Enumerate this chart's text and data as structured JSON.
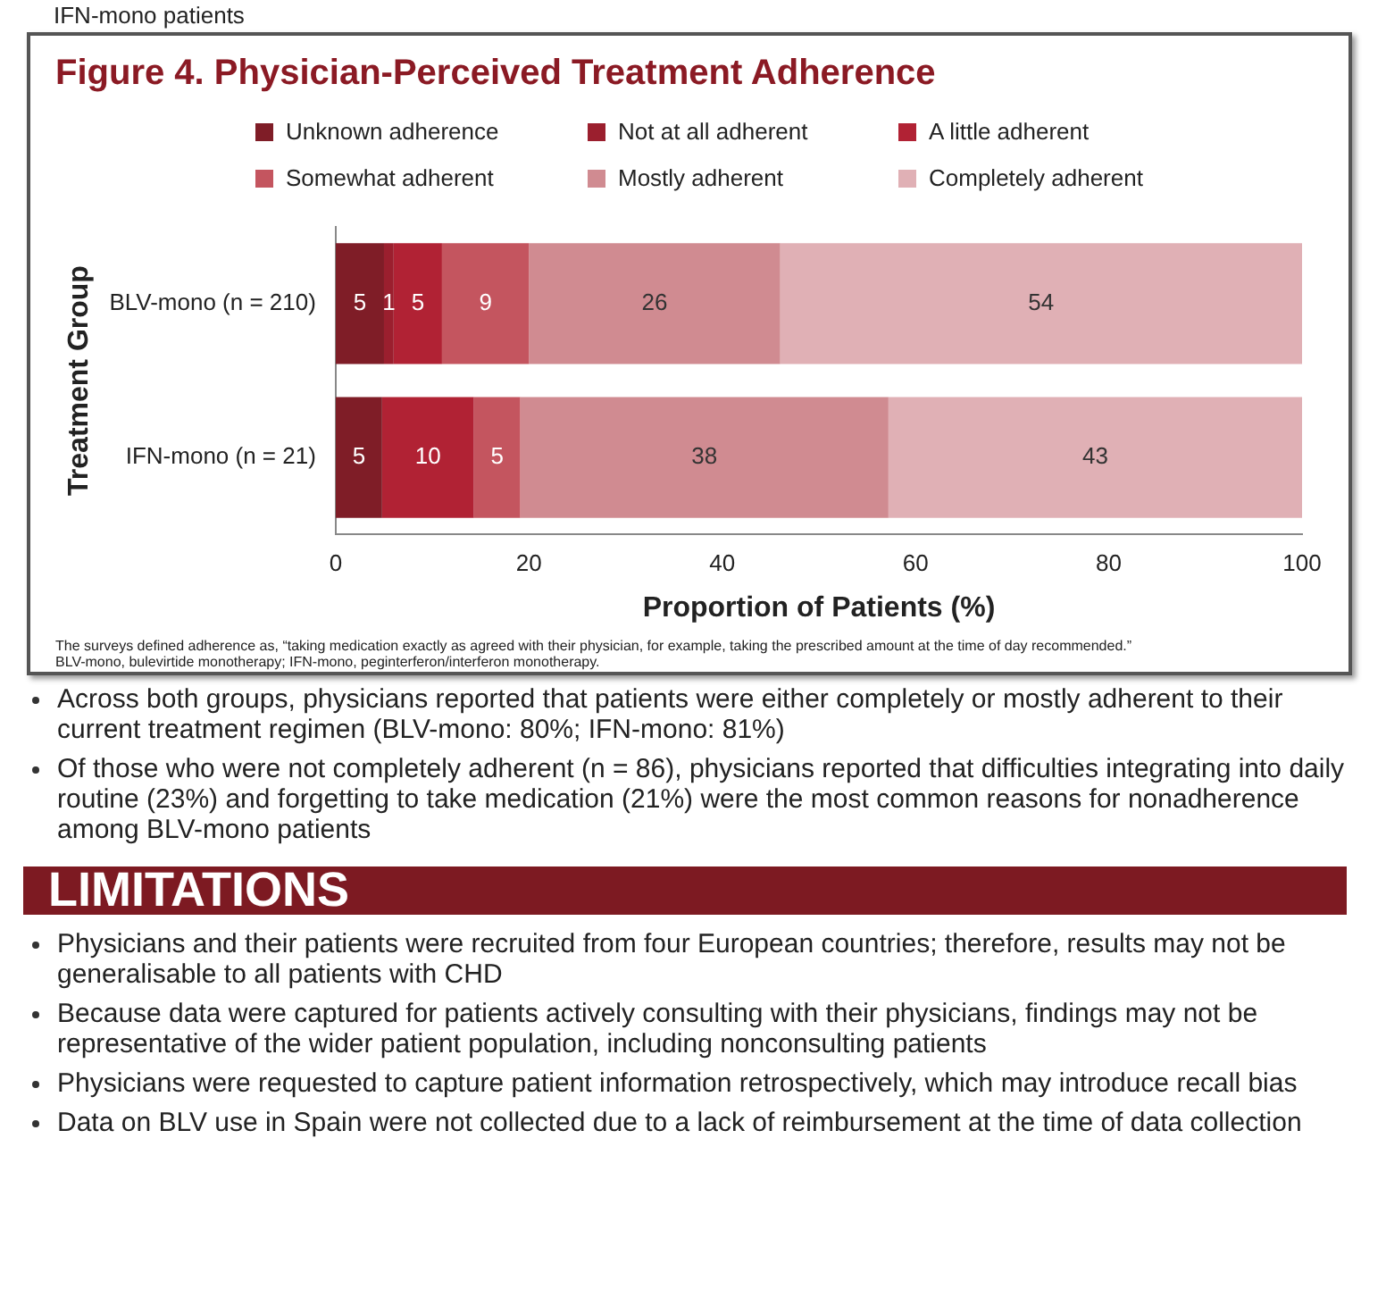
{
  "chart_data": {
    "type": "bar",
    "orientation": "horizontal",
    "stacked": true,
    "title": "Figure 4. Physician-Perceived Treatment Adherence",
    "xlabel": "Proportion of Patients (%)",
    "ylabel": "Treatment Group",
    "categories": [
      "BLV-mono (n = 210)",
      "IFN-mono (n = 21)"
    ],
    "series": [
      {
        "name": "Unknown adherence",
        "color": "#7f1d27",
        "values": [
          5,
          4.8
        ],
        "value_labels": [
          "5",
          "5"
        ]
      },
      {
        "name": "Not at all adherent",
        "color": "#9b1f2e",
        "values": [
          1,
          0
        ],
        "value_labels": [
          "1",
          null
        ]
      },
      {
        "name": "A little adherent",
        "color": "#b12234",
        "values": [
          5,
          9.5
        ],
        "value_labels": [
          "5",
          "10"
        ]
      },
      {
        "name": "Somewhat adherent",
        "color": "#c4555f",
        "values": [
          9,
          4.8
        ],
        "value_labels": [
          "9",
          "5"
        ]
      },
      {
        "name": "Mostly adherent",
        "color": "#d08b91",
        "values": [
          26,
          38.1
        ],
        "value_labels": [
          "26",
          "38"
        ]
      },
      {
        "name": "Completely adherent",
        "color": "#e0b0b5",
        "values": [
          54,
          42.8
        ],
        "value_labels": [
          "54",
          "43"
        ]
      }
    ],
    "xlim": [
      0,
      100
    ],
    "xticks": [
      0,
      20,
      40,
      60,
      80,
      100
    ],
    "grid": false,
    "legend": "top",
    "annotations": [
      "IFN-mono patients",
      "The surveys defined adherence as, “taking medication exactly as agreed with their physician, for example, taking the prescribed amount at the time of day recommended.”",
      "BLV-mono, bulevirtide monotherapy; IFN-mono, peginterferon/interferon monotherapy.",
      "Across both groups, physicians reported that patients were either completely or mostly adherent to their current treatment regimen (BLV-mono: 80%; IFN-mono: 81%)",
      "Of those who were not completely adherent (n = 86), physicians reported that difficulties integrating into daily routine (23%) and forgetting to take medication (21%) were the most common reasons for nonadherence among BLV-mono patients",
      "LIMITATIONS",
      "Physicians and their patients were recruited from four European countries; therefore, results may not be generalisable to all patients with CHD",
      "Because data were captured for patients actively consulting with their physicians, findings may not be representative of the wider patient population, including nonconsulting patients",
      "Physicians were requested to capture patient information retrospectively, which may introduce recall bias",
      "Data on BLV use in Spain were not collected due to a lack of reimbursement at the time of data collection"
    ]
  }
}
